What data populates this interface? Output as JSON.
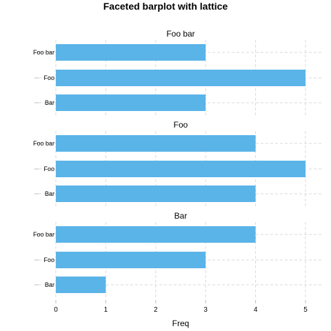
{
  "chart_data": {
    "type": "bar",
    "orientation": "horizontal",
    "title": "Faceted barplot with lattice",
    "xlabel": "Freq",
    "ylabel": "",
    "xlim": [
      0,
      5.3
    ],
    "x_ticks": [
      0,
      1,
      2,
      3,
      4,
      5
    ],
    "grid": true,
    "bar_color": "#5ab4e8",
    "grid_color": "#d9d9d9",
    "panels": [
      {
        "strip": "Foo bar",
        "categories": [
          "Foo bar",
          "Foo",
          "Bar"
        ],
        "values": [
          3,
          5,
          3
        ]
      },
      {
        "strip": "Foo",
        "categories": [
          "Foo bar",
          "Foo",
          "Bar"
        ],
        "values": [
          4,
          5,
          4
        ]
      },
      {
        "strip": "Bar",
        "categories": [
          "Foo bar",
          "Foo",
          "Bar"
        ],
        "values": [
          4,
          3,
          1
        ]
      }
    ]
  }
}
